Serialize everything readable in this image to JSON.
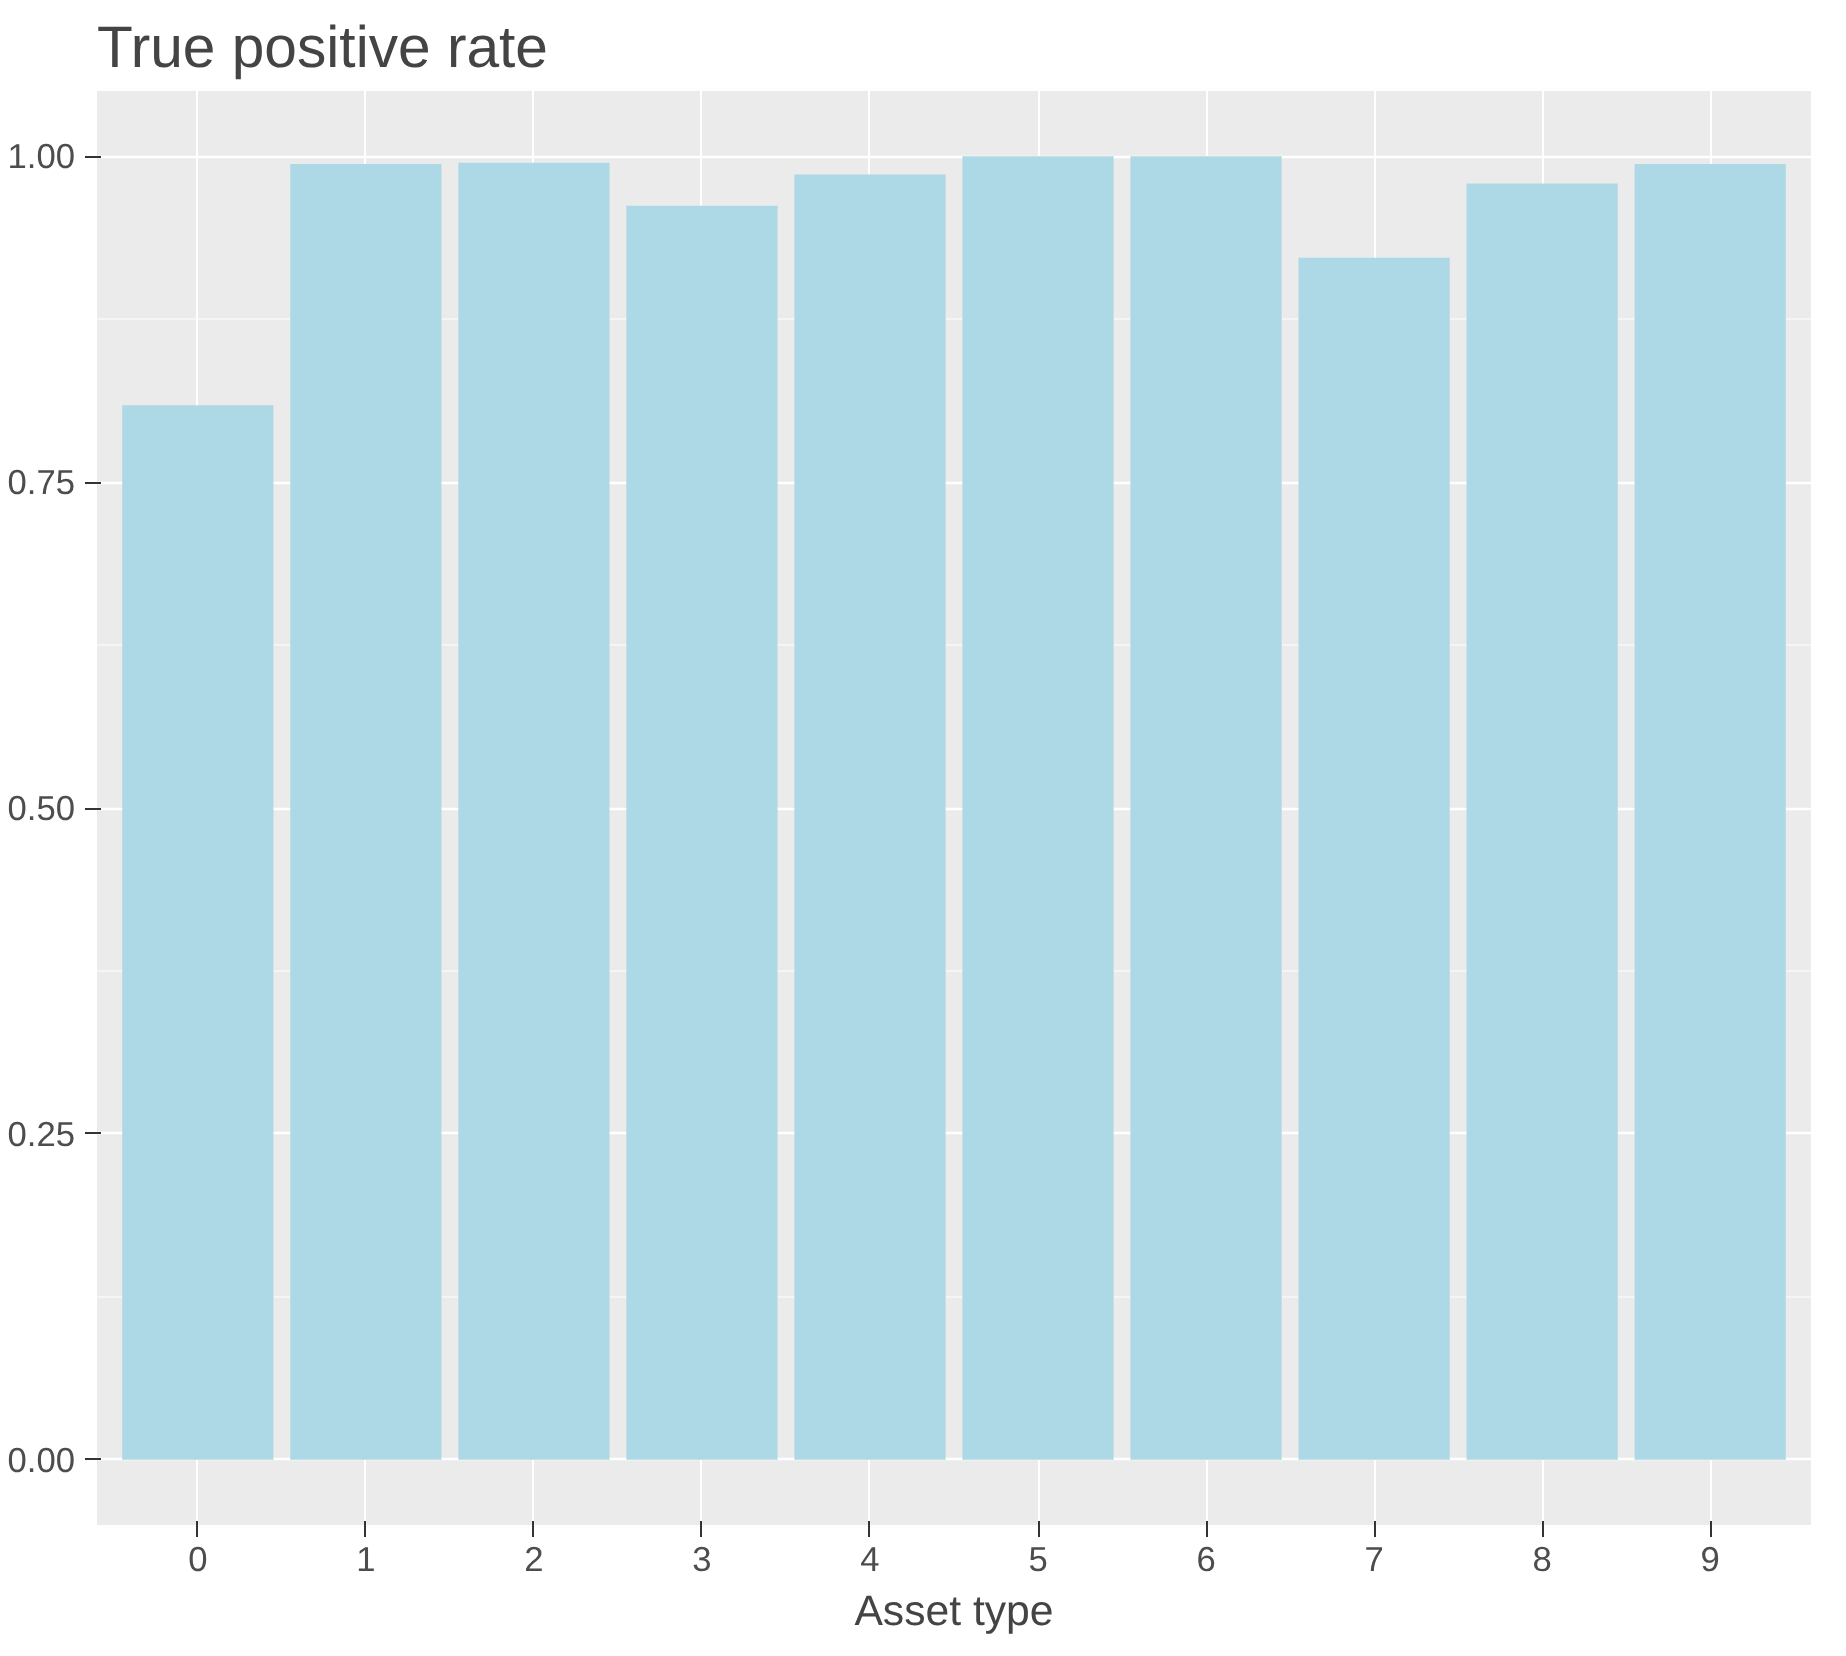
{
  "chart_data": {
    "type": "bar",
    "title": "True positive rate",
    "xlabel": "Asset type",
    "categories": [
      "0",
      "1",
      "2",
      "3",
      "4",
      "5",
      "6",
      "7",
      "8",
      "9"
    ],
    "values": [
      0.809,
      0.994,
      0.995,
      0.962,
      0.986,
      1.0,
      1.0,
      0.922,
      0.979,
      0.994
    ],
    "color": "#add8e6",
    "ylim": [
      -0.05,
      1.05
    ],
    "yticks": [
      {
        "value": 0,
        "label": "0.00"
      },
      {
        "value": 0.25,
        "label": "0.25"
      },
      {
        "value": 0.5,
        "label": "0.50"
      },
      {
        "value": 0.75,
        "label": "0.75"
      },
      {
        "value": 1,
        "label": "1.00"
      }
    ],
    "grid": true
  }
}
